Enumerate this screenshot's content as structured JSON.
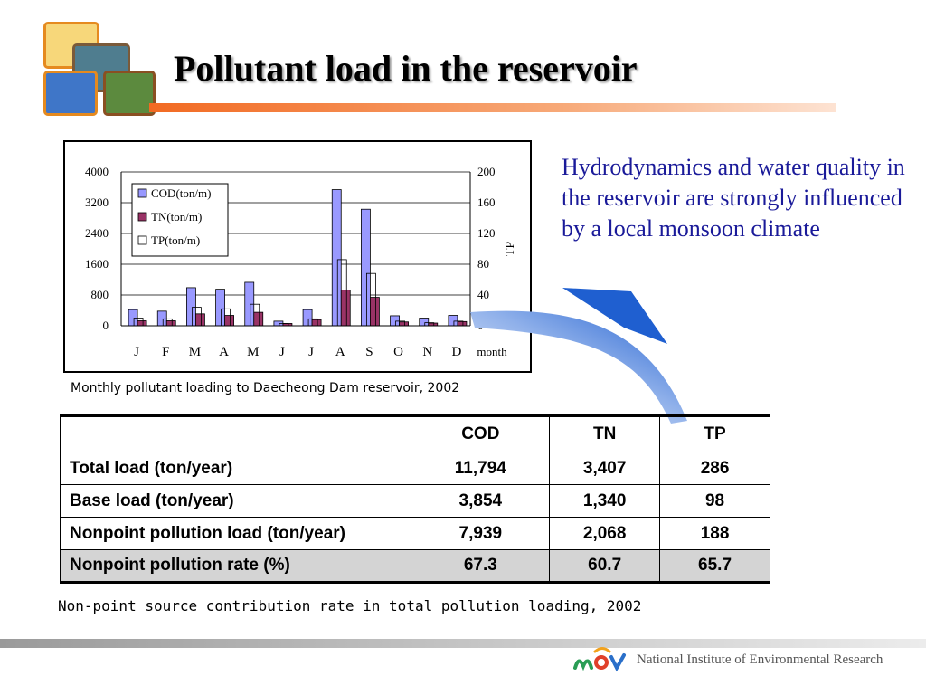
{
  "slide": {
    "title": "Pollutant load in the reservoir",
    "side_text": "Hydrodynamics and water quality in the reservoir are strongly influenced by a local monsoon climate",
    "chart_caption": "Monthly pollutant loading to Daecheong Dam reservoir, 2002",
    "table_caption": "Non-point source contribution rate in total pollution loading, 2002",
    "footer_text": "National Institute of Environmental Research"
  },
  "colors": {
    "title_rule": "#f26a22",
    "side_text": "#1a1a99",
    "cod": "#9999ff",
    "tn": "#993366",
    "tp": "#ffffff",
    "arrow": "#1f5fd0"
  },
  "icons": {
    "logo": "photo-collage-logo",
    "arrow": "curved-arrow-icon",
    "footer_logo": "mev-logo-icon"
  },
  "chart_data": {
    "type": "bar",
    "categories": [
      "J",
      "F",
      "M",
      "A",
      "M",
      "J",
      "J",
      "A",
      "S",
      "O",
      "N",
      "D"
    ],
    "x_unit_label": "month",
    "y_ticks": [
      "0",
      "800",
      "1600",
      "2400",
      "3200",
      "4000"
    ],
    "y2_ticks": [
      "0",
      "40",
      "80",
      "120",
      "160",
      "200"
    ],
    "ylim": [
      0,
      4000
    ],
    "y2lim": [
      0,
      200
    ],
    "y2label": "TP",
    "legend_position": "top-left",
    "grid": "horizontal",
    "series": [
      {
        "name": "COD(ton/m)",
        "axis": "left",
        "color": "#9999ff",
        "values": [
          420,
          380,
          990,
          950,
          1130,
          120,
          420,
          3540,
          3030,
          260,
          200,
          270
        ]
      },
      {
        "name": "TN(ton/m)",
        "axis": "left",
        "color": "#993366",
        "values": [
          130,
          130,
          310,
          270,
          350,
          60,
          160,
          930,
          740,
          100,
          70,
          110
        ]
      },
      {
        "name": "TP(ton/m)",
        "axis": "right",
        "color": "#ffffff",
        "values": [
          10,
          9,
          24,
          22,
          28,
          3,
          9,
          86,
          68,
          6,
          4,
          6
        ]
      }
    ]
  },
  "table": {
    "headers": [
      "",
      "COD",
      "TN",
      "TP"
    ],
    "rows": [
      {
        "label": "Total load (ton/year)",
        "cod": "11,794",
        "tn": "3,407",
        "tp": "286"
      },
      {
        "label": "Base load (ton/year)",
        "cod": "3,854",
        "tn": "1,340",
        "tp": "98"
      },
      {
        "label": "Nonpoint pollution load (ton/year)",
        "cod": "7,939",
        "tn": "2,068",
        "tp": "188"
      },
      {
        "label": "Nonpoint pollution rate (%)",
        "cod": "67.3",
        "tn": "60.7",
        "tp": "65.7"
      }
    ]
  }
}
